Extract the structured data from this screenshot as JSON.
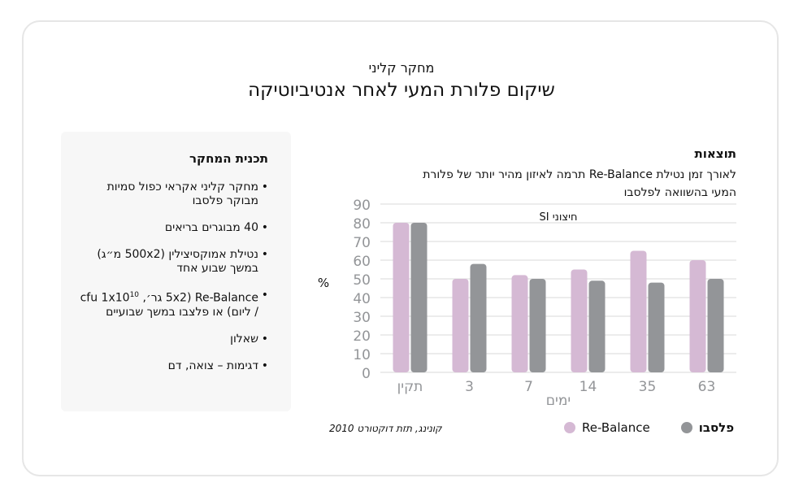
{
  "header": {
    "subtitle": "מחקר קליני",
    "title": "שיקום פלורת המעי לאחר אנטיביוטיקה"
  },
  "study": {
    "heading": "תכנית המחקר",
    "items": [
      "מחקר קליני אקראי כפול סמיות מבוקר פלסבו",
      "40 מבוגרים בריאים",
      "נטילת אמוקסיצילין (500x2 מ״ג) במשך שבוע אחד",
      "Re-Balance (5x2 גר׳, cfu 1x10",
      "10",
      " / ליום) או פלצבו במשך שבועיים",
      "שאלון",
      "דגימות – צואה, דם"
    ]
  },
  "results": {
    "heading": "תוצאות",
    "text": "לאורך זמן נטילת Re-Balance תרמה לאיזון מהיר יותר של פלורת המעי בהשוואה לפלסבו"
  },
  "citation": "קונינג, תזת דוקטורט 2010",
  "chart_data": {
    "type": "bar",
    "title": "SI חיצוני",
    "xlabel": "ימים",
    "ylabel": "%",
    "ylim": [
      0,
      90
    ],
    "yticks": [
      0,
      10,
      20,
      30,
      40,
      50,
      60,
      70,
      80,
      90
    ],
    "categories": [
      "תקין",
      "3",
      "7",
      "14",
      "35",
      "63"
    ],
    "series": [
      {
        "name": "Re-Balance",
        "color": "#d5b9d4",
        "values": [
          80,
          50,
          52,
          55,
          65,
          60
        ]
      },
      {
        "name": "פלסבו",
        "color": "#939598",
        "values": [
          80,
          58,
          50,
          49,
          48,
          50
        ]
      }
    ],
    "legend": "bottom"
  }
}
